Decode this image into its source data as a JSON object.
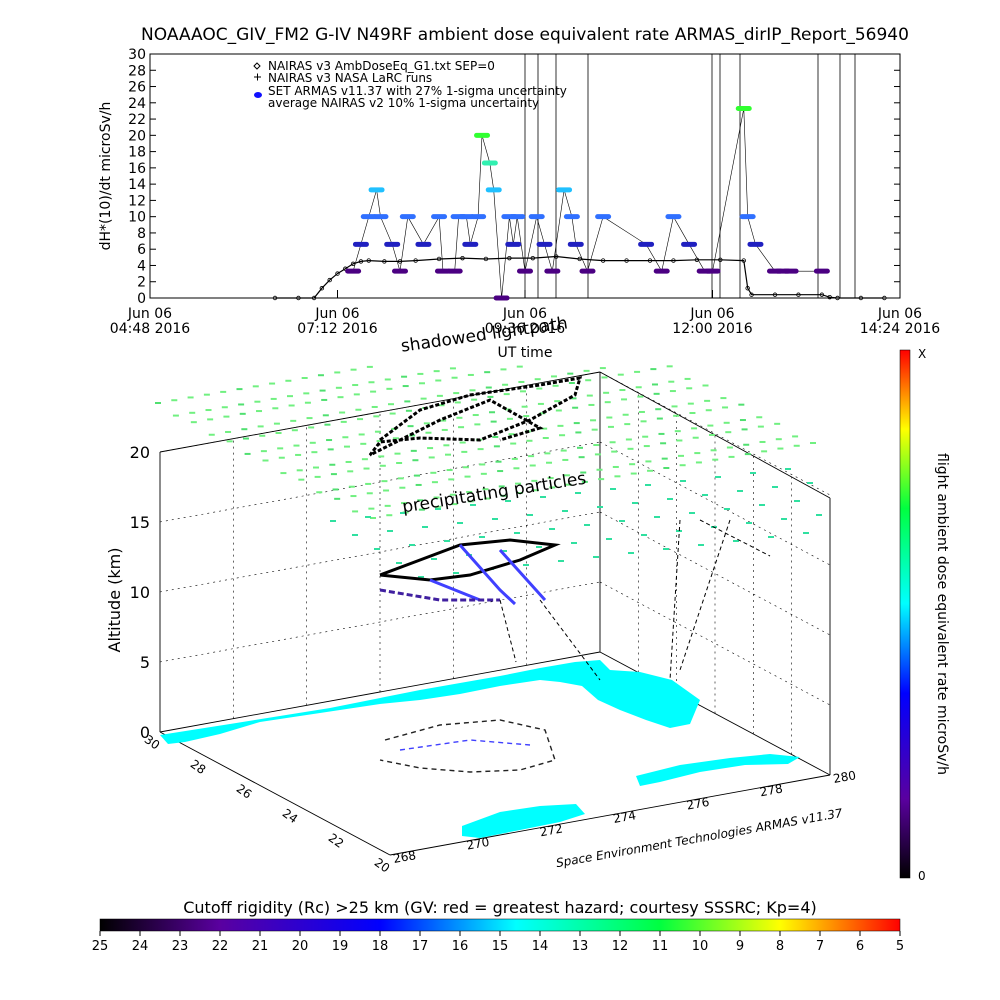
{
  "chart_data": [
    {
      "type": "line",
      "title": "NOAAAOC_GIV_FM2 G-IV    N49RF   ambient dose equivalent rate ARMAS_dirIP_Report_56940",
      "xlabel": "UT time",
      "ylabel": "dH*(10)/dt microSv/h",
      "ylim": [
        0,
        30
      ],
      "yticks": [
        0,
        2,
        4,
        6,
        8,
        10,
        12,
        14,
        16,
        18,
        20,
        22,
        24,
        26,
        28,
        30
      ],
      "xticks": [
        {
          "t": 4.8,
          "line1": "Jun 06",
          "line2": "04:48 2016"
        },
        {
          "t": 7.2,
          "line1": "Jun 06",
          "line2": "07:12 2016"
        },
        {
          "t": 9.6,
          "line1": "Jun 06",
          "line2": "09:36 2016"
        },
        {
          "t": 12.0,
          "line1": "Jun 06",
          "line2": "12:00 2016"
        },
        {
          "t": 14.4,
          "line1": "Jun 06",
          "line2": "14:24 2016"
        }
      ],
      "xlim": [
        4.8,
        14.4
      ],
      "legend_position": "top-left",
      "legend": [
        "NAIRAS v3 AmbDoseEq_G1.txt SEP=0",
        "NAIRAS v3 NASA LaRC runs",
        "SET ARMAS v11.37 with 27% 1-sigma uncertainty",
        "average NAIRAS v2 10% 1-sigma uncertainty"
      ],
      "series": [
        {
          "name": "NAIRAS v3 AmbDoseEq_G1.txt SEP=0",
          "color": "#000000",
          "x": [
            6.4,
            6.7,
            6.9,
            7.0,
            7.1,
            7.2,
            7.3,
            7.4,
            7.5,
            7.6,
            7.8,
            8.0,
            8.2,
            8.5,
            8.8,
            9.1,
            9.4,
            9.7,
            10.0,
            10.3,
            10.6,
            10.9,
            11.2,
            11.5,
            11.8,
            12.1,
            12.4,
            12.45,
            12.5,
            12.8,
            13.1,
            13.4,
            13.5,
            13.6,
            13.9,
            14.2
          ],
          "y": [
            0,
            0,
            0,
            1.2,
            2.2,
            3.0,
            3.6,
            4.2,
            4.5,
            4.6,
            4.5,
            4.5,
            4.6,
            4.8,
            4.9,
            4.8,
            4.9,
            4.9,
            5.1,
            4.8,
            4.6,
            4.6,
            4.6,
            4.6,
            4.7,
            4.7,
            4.6,
            1.2,
            0.4,
            0.4,
            0.4,
            0.4,
            0.1,
            0,
            0,
            0
          ]
        },
        {
          "name": "SET ARMAS v11.37 with 27% 1-sigma uncertainty",
          "x": [
            7.4,
            7.5,
            7.6,
            7.7,
            7.75,
            7.9,
            8.0,
            8.1,
            8.3,
            8.5,
            8.55,
            8.7,
            8.75,
            8.85,
            8.9,
            9.0,
            9.05,
            9.15,
            9.2,
            9.3,
            9.4,
            9.45,
            9.5,
            9.6,
            9.75,
            9.85,
            9.95,
            10.1,
            10.2,
            10.25,
            10.4,
            10.6,
            11.15,
            11.35,
            11.5,
            11.7,
            11.9,
            12.0,
            12.4,
            12.45,
            12.55,
            12.8,
            12.9,
            13.0,
            13.4
          ],
          "y": [
            3.3,
            6.6,
            10.0,
            13.3,
            10.0,
            6.6,
            3.3,
            10.0,
            6.6,
            10.0,
            3.3,
            3.3,
            10.0,
            10.0,
            6.6,
            10.0,
            20.0,
            16.6,
            13.3,
            0,
            10.0,
            6.6,
            10.0,
            3.3,
            10.0,
            6.6,
            3.3,
            13.3,
            10.0,
            6.6,
            3.3,
            10.0,
            6.6,
            3.3,
            10.0,
            6.6,
            3.3,
            3.3,
            23.3,
            10.0,
            6.6,
            3.3,
            3.3,
            3.3,
            3.3
          ]
        }
      ]
    },
    {
      "type": "scatter",
      "title": "",
      "xlabel": "",
      "ylabel": "",
      "zlabel": "Altitude (km)",
      "zticks": [
        0,
        5,
        10,
        15,
        20
      ],
      "yticks": [
        20,
        22,
        24,
        26,
        28,
        30
      ],
      "xticks": [
        268,
        270,
        272,
        274,
        276,
        278,
        280
      ],
      "annotations": [
        "shadowed lightpath",
        "precipitating particles",
        "Space Environment Technologies ARMAS v11.37"
      ],
      "colorbar_label": "flight ambient dose equivalent rate microSv/h",
      "colorbar_top": "X",
      "colorbar_bottom": "0"
    },
    {
      "type": "colorbar",
      "title": "Cutoff rigidity (Rc) >25 km (GV: red = greatest hazard; courtesy SSSRC; Kp=4)",
      "ticks": [
        "25",
        "24",
        "23",
        "22",
        "21",
        "20",
        "19",
        "18",
        "17",
        "16",
        "15",
        "14",
        "13",
        "12",
        "11",
        "10",
        "9",
        "8",
        "7",
        "6",
        "5"
      ]
    }
  ]
}
